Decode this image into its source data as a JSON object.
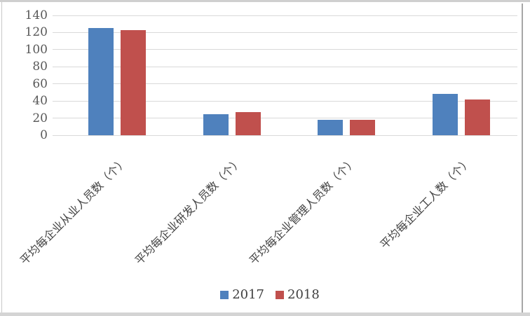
{
  "chart_data": {
    "type": "bar",
    "title": "",
    "xlabel": "",
    "ylabel": "",
    "categories": [
      "平均每企业从业人员数（个）",
      "平均每企业研发人员数（个）",
      "平均每企业管理人员数（个）",
      "平均每企业工人数（个）"
    ],
    "series": [
      {
        "name": "2017",
        "color": "#4F81BD",
        "values": [
          125,
          25,
          18,
          48
        ]
      },
      {
        "name": "2018",
        "color": "#C0504D",
        "values": [
          123,
          27,
          18,
          42
        ]
      }
    ],
    "ylim": [
      0,
      140
    ],
    "yticks": [
      0,
      20,
      40,
      60,
      80,
      100,
      120,
      140
    ],
    "grid": true,
    "legend_position": "bottom",
    "category_label_rotation_deg": 45
  },
  "colors": {
    "background": "#ffffff",
    "gridline": "#d9d9d9",
    "axis_text": "#595959",
    "category_text": "#444444",
    "legend_text": "#404040",
    "frame_top": "#cfcfcf",
    "frame_bottom": "#d4d4d4",
    "frame_left": "#c8c8c8",
    "frame_right": "#a6a6a6"
  }
}
